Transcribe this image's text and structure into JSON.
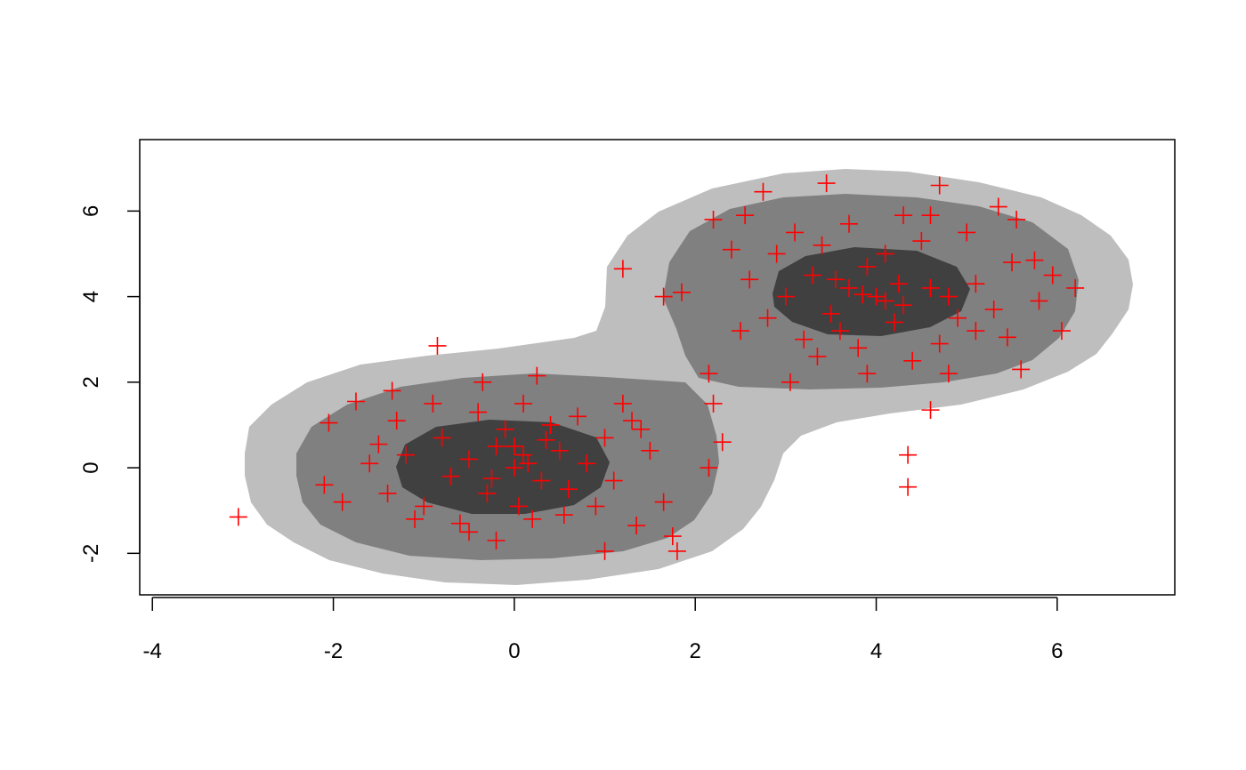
{
  "chart_data": {
    "type": "scatter",
    "marker": "+",
    "color": "#ff0000",
    "xlim": [
      -4.14,
      7.3
    ],
    "ylim": [
      -2.97,
      7.67
    ],
    "xticks": [
      -4,
      -2,
      0,
      2,
      4,
      6
    ],
    "yticks": [
      -2,
      0,
      2,
      4,
      6
    ],
    "x": [
      -3.05,
      -0.85,
      1.2,
      4.35,
      4.35,
      4.6,
      3.45,
      4.7,
      2.75,
      5.35,
      6.2,
      6.05,
      5.6,
      1.0,
      1.8,
      1.75,
      1.35,
      -2.05,
      -1.75,
      0.25,
      -0.35,
      2.15,
      2.2,
      2.3,
      2.15,
      1.65,
      1.85,
      1.65,
      2.2,
      2.55,
      5.55,
      5.95,
      5.75,
      4.8,
      5.45,
      3.05,
      -1.9,
      -2.1,
      -1.5,
      -1.35,
      0,
      0.1,
      -0.2,
      0.3,
      -0.5,
      0.5,
      -0.3,
      0.6,
      -0.7,
      0.8,
      0.05,
      -0.1,
      1.0,
      -1.0,
      1.1,
      -1.2,
      0.4,
      -0.6,
      0.7,
      1.3,
      -0.9,
      0.2,
      -1.4,
      0.9,
      -0.4,
      1.5,
      -0.8,
      0.15,
      0.0,
      -0.25,
      0.35,
      -1.1,
      1.2,
      -0.5,
      0.55,
      -1.6,
      0.1,
      -0.2,
      1.4,
      -1.3,
      4,
      3.7,
      4.3,
      3.5,
      4.6,
      3.9,
      4.2,
      3.3,
      4.8,
      3.6,
      4.1,
      3.0,
      4.9,
      3.4,
      4.5,
      2.8,
      5.1,
      3.8,
      4.4,
      3.1,
      5.0,
      2.6,
      5.3,
      3.2,
      4.7,
      2.9,
      4.3,
      3.7,
      5.5,
      2.5,
      3.9,
      4.1,
      3.85,
      4.25,
      3.55,
      5.8,
      2.4,
      4.6,
      3.35,
      5.1
    ],
    "y": [
      -1.15,
      2.85,
      4.65,
      0.3,
      -0.45,
      1.35,
      6.65,
      6.6,
      6.45,
      6.1,
      4.2,
      3.2,
      2.3,
      -1.95,
      -1.95,
      -1.6,
      -1.35,
      1.05,
      1.55,
      2.15,
      2.0,
      2.2,
      1.5,
      0.6,
      0.0,
      -0.8,
      4.1,
      4.0,
      5.8,
      5.9,
      5.8,
      4.5,
      4.85,
      2.2,
      3.05,
      2.0,
      -0.8,
      -0.4,
      0.55,
      1.8,
      0,
      0.3,
      0.5,
      -0.3,
      0.2,
      0.4,
      -0.6,
      -0.5,
      -0.2,
      0.1,
      -0.9,
      0.9,
      0.7,
      -0.9,
      -0.3,
      0.3,
      1.0,
      -1.3,
      1.2,
      1.1,
      1.5,
      -1.2,
      -0.6,
      -0.9,
      1.3,
      0.4,
      0.7,
      0.1,
      0.5,
      -0.25,
      0.65,
      -1.2,
      1.5,
      -1.5,
      -1.1,
      0.1,
      1.5,
      -1.7,
      0.9,
      1.1,
      4,
      4.2,
      3.8,
      3.6,
      4.2,
      4.7,
      3.4,
      4.5,
      4.0,
      3.2,
      5.0,
      4.0,
      3.5,
      5.2,
      5.3,
      3.5,
      4.3,
      2.8,
      2.5,
      5.5,
      5.5,
      4.4,
      3.7,
      3.0,
      2.9,
      5.0,
      5.9,
      5.7,
      4.8,
      3.2,
      2.2,
      3.9,
      4.05,
      4.3,
      4.4,
      3.9,
      5.1,
      5.9,
      2.6,
      3.2
    ]
  }
}
